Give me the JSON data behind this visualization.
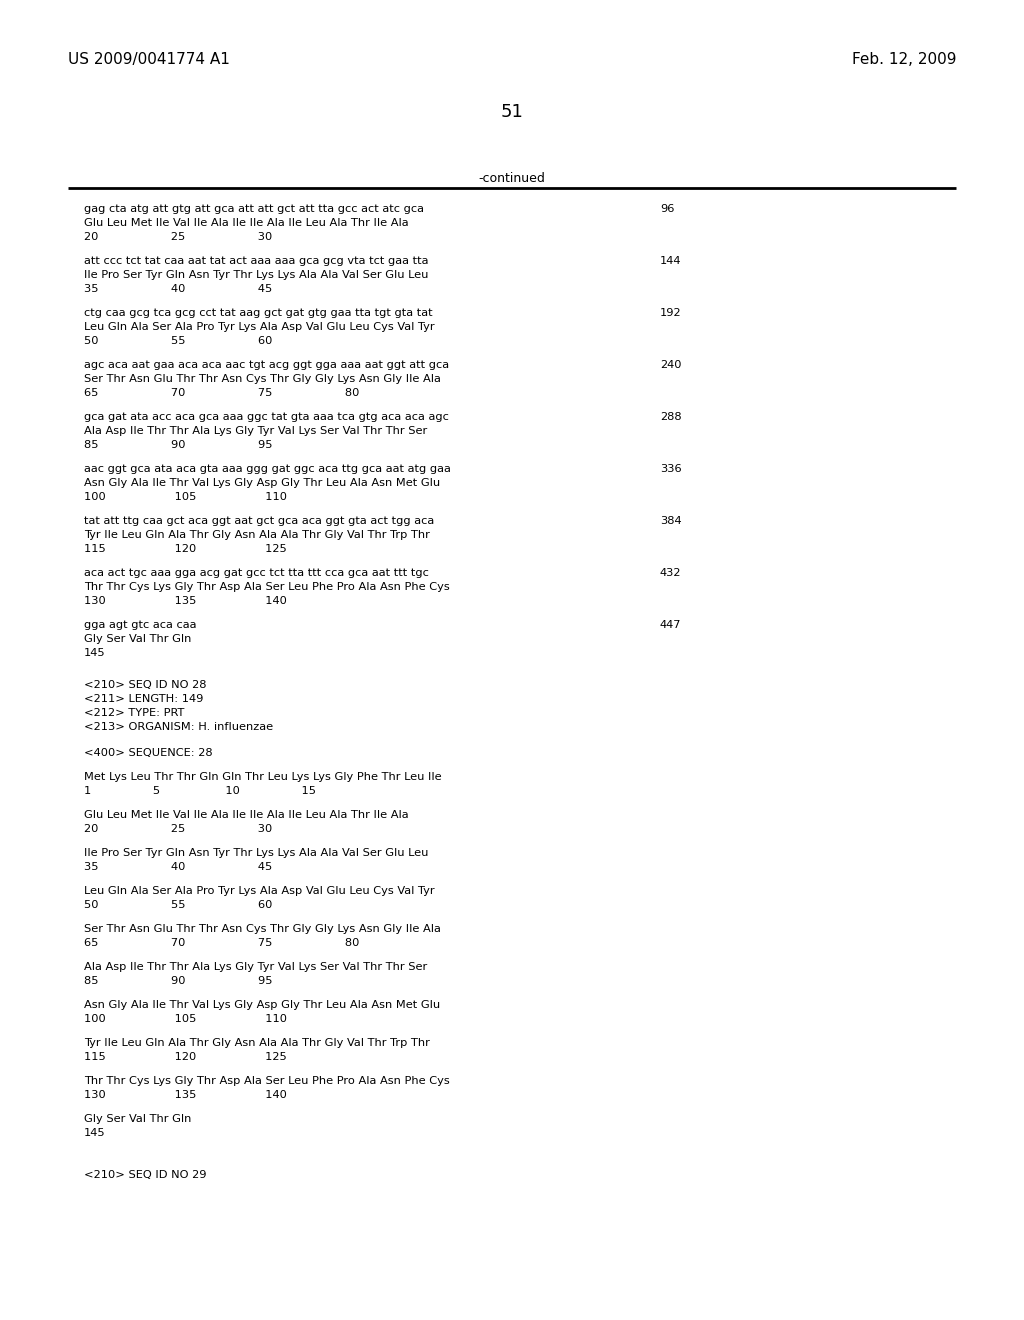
{
  "page_number": "51",
  "header_left": "US 2009/0041774 A1",
  "header_right": "Feb. 12, 2009",
  "continued_label": "-continued",
  "background_color": "#ffffff",
  "seq_blocks": [
    {
      "nucleotide": "gag cta atg att gtg att gca att att gct att tta gcc act atc gca",
      "amino": "Glu Leu Met Ile Val Ile Ala Ile Ile Ala Ile Leu Ala Thr Ile Ala",
      "numbers": "20                    25                    30",
      "num_right": "96"
    },
    {
      "nucleotide": "att ccc tct tat caa aat tat act aaa aaa gca gcg vta tct gaa tta",
      "amino": "Ile Pro Ser Tyr Gln Asn Tyr Thr Lys Lys Ala Ala Val Ser Glu Leu",
      "numbers": "35                    40                    45",
      "num_right": "144"
    },
    {
      "nucleotide": "ctg caa gcg tca gcg cct tat aag gct gat gtg gaa tta tgt gta tat",
      "amino": "Leu Gln Ala Ser Ala Pro Tyr Lys Ala Asp Val Glu Leu Cys Val Tyr",
      "numbers": "50                    55                    60",
      "num_right": "192"
    },
    {
      "nucleotide": "agc aca aat gaa aca aca aac tgt acg ggt gga aaa aat ggt att gca",
      "amino": "Ser Thr Asn Glu Thr Thr Asn Cys Thr Gly Gly Lys Asn Gly Ile Ala",
      "numbers": "65                    70                    75                    80",
      "num_right": "240"
    },
    {
      "nucleotide": "gca gat ata acc aca gca aaa ggc tat gta aaa tca gtg aca aca agc",
      "amino": "Ala Asp Ile Thr Thr Ala Lys Gly Tyr Val Lys Ser Val Thr Thr Ser",
      "numbers": "85                    90                    95",
      "num_right": "288"
    },
    {
      "nucleotide": "aac ggt gca ata aca gta aaa ggg gat ggc aca ttg gca aat atg gaa",
      "amino": "Asn Gly Ala Ile Thr Val Lys Gly Asp Gly Thr Leu Ala Asn Met Glu",
      "numbers": "100                   105                   110",
      "num_right": "336"
    },
    {
      "nucleotide": "tat att ttg caa gct aca ggt aat gct gca aca ggt gta act tgg aca",
      "amino": "Tyr Ile Leu Gln Ala Thr Gly Asn Ala Ala Thr Gly Val Thr Trp Thr",
      "numbers": "115                   120                   125",
      "num_right": "384"
    },
    {
      "nucleotide": "aca act tgc aaa gga acg gat gcc tct tta ttt cca gca aat ttt tgc",
      "amino": "Thr Thr Cys Lys Gly Thr Asp Ala Ser Leu Phe Pro Ala Asn Phe Cys",
      "numbers": "130                   135                   140",
      "num_right": "432"
    },
    {
      "nucleotide": "gga agt gtc aca caa",
      "amino": "Gly Ser Val Thr Gln",
      "numbers": "145",
      "num_right": "447"
    }
  ],
  "metadata_lines": [
    "<210> SEQ ID NO 28",
    "<211> LENGTH: 149",
    "<212> TYPE: PRT",
    "<213> ORGANISM: H. influenzae",
    "",
    "<400> SEQUENCE: 28"
  ],
  "protein_lines": [
    [
      "Met Lys Leu Thr Thr Gln Gln Thr Leu Lys Lys Gly Phe Thr Leu Ile",
      "1                 5                  10                 15"
    ],
    [
      "Glu Leu Met Ile Val Ile Ala Ile Ile Ala Ile Leu Ala Thr Ile Ala",
      "20                    25                    30"
    ],
    [
      "Ile Pro Ser Tyr Gln Asn Tyr Thr Lys Lys Ala Ala Val Ser Glu Leu",
      "35                    40                    45"
    ],
    [
      "Leu Gln Ala Ser Ala Pro Tyr Lys Ala Asp Val Glu Leu Cys Val Tyr",
      "50                    55                    60"
    ],
    [
      "Ser Thr Asn Glu Thr Thr Asn Cys Thr Gly Gly Lys Asn Gly Ile Ala",
      "65                    70                    75                    80"
    ],
    [
      "Ala Asp Ile Thr Thr Ala Lys Gly Tyr Val Lys Ser Val Thr Thr Ser",
      "85                    90                    95"
    ],
    [
      "Asn Gly Ala Ile Thr Val Lys Gly Asp Gly Thr Leu Ala Asn Met Glu",
      "100                   105                   110"
    ],
    [
      "Tyr Ile Leu Gln Ala Thr Gly Asn Ala Ala Thr Gly Val Thr Trp Thr",
      "115                   120                   125"
    ],
    [
      "Thr Thr Cys Lys Gly Thr Asp Ala Ser Leu Phe Pro Ala Asn Phe Cys",
      "130                   135                   140"
    ],
    [
      "Gly Ser Val Thr Gln",
      "145"
    ]
  ],
  "footer_line": "<210> SEQ ID NO 29"
}
